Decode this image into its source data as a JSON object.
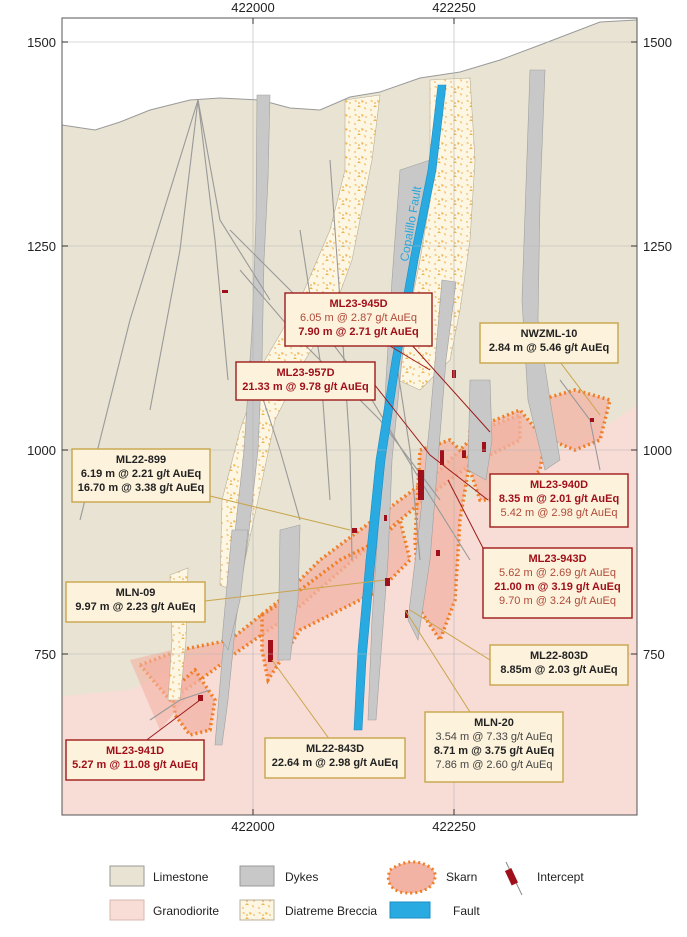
{
  "axes": {
    "x_ticks": [
      "422000",
      "422250"
    ],
    "y_ticks": [
      "1500",
      "1250",
      "1000",
      "750"
    ]
  },
  "fault_label": "Copalillo Fault",
  "colors": {
    "limestone": "#e8e3d2",
    "granodiorite": "#f8dcd6",
    "dykes": "#c8c8c8",
    "breccia": "#fdf6e3",
    "breccia_fleck": "#f0b54a",
    "fault": "#29abe2",
    "skarn_fill": "#f3b3a4",
    "skarn_border": "#f07d24",
    "intercept": "#a0101b",
    "callout_border": "#c8a54a",
    "callout_fill": "#fdf3dc",
    "callout_red_border": "#9e1b1b",
    "title_red": "#a0101b"
  },
  "callouts": [
    {
      "id": "ml23-945d",
      "title": "ML23-945D",
      "red": true,
      "lines": [
        {
          "text": "6.05 m @ 2.87 g/t AuEq",
          "bold": false
        },
        {
          "text": "7.90 m @ 2.71 g/t AuEq",
          "bold": true
        }
      ]
    },
    {
      "id": "nwzml-10",
      "title": "NWZML-10",
      "red": false,
      "lines": [
        {
          "text": "2.84 m @ 5.46 g/t AuEq",
          "bold": true
        }
      ]
    },
    {
      "id": "ml23-957d",
      "title": "ML23-957D",
      "red": true,
      "lines": [
        {
          "text": "21.33 m @ 9.78 g/t AuEq",
          "bold": true
        }
      ]
    },
    {
      "id": "ml22-899",
      "title": "ML22-899",
      "red": false,
      "lines": [
        {
          "text": "6.19 m @ 2.21 g/t AuEq",
          "bold": true
        },
        {
          "text": "16.70 m @ 3.38 g/t AuEq",
          "bold": true
        }
      ]
    },
    {
      "id": "ml23-940d",
      "title": "ML23-940D",
      "red": true,
      "lines": [
        {
          "text": "8.35 m @ 2.01 g/t AuEq",
          "bold": true
        },
        {
          "text": "5.42 m @ 2.98 g/t AuEq",
          "bold": false
        }
      ]
    },
    {
      "id": "ml23-943d",
      "title": "ML23-943D",
      "red": true,
      "lines": [
        {
          "text": "5.62 m @ 2.69 g/t AuEq",
          "bold": false
        },
        {
          "text": "21.00 m @ 3.19 g/t AuEq",
          "bold": true
        },
        {
          "text": "9.70 m @ 3.24 g/t AuEq",
          "bold": false
        }
      ]
    },
    {
      "id": "mln-09",
      "title": "MLN-09",
      "red": false,
      "lines": [
        {
          "text": "9.97 m @ 2.23 g/t AuEq",
          "bold": true
        }
      ]
    },
    {
      "id": "ml22-803d",
      "title": "ML22-803D",
      "red": false,
      "lines": [
        {
          "text": "8.85m @ 2.03 g/t AuEq",
          "bold": true
        }
      ]
    },
    {
      "id": "mln-20",
      "title": "MLN-20",
      "red": false,
      "lines": [
        {
          "text": "3.54 m @ 7.33 g/t AuEq",
          "bold": false
        },
        {
          "text": "8.71 m @ 3.75 g/t AuEq",
          "bold": true
        },
        {
          "text": "7.86 m @ 2.60 g/t AuEq",
          "bold": false
        }
      ]
    },
    {
      "id": "ml23-941d",
      "title": "ML23-941D",
      "red": true,
      "lines": [
        {
          "text": "5.27 m @ 11.08 g/t AuEq",
          "bold": true
        }
      ]
    },
    {
      "id": "ml22-843d",
      "title": "ML22-843D",
      "red": false,
      "lines": [
        {
          "text": "22.64 m @ 2.98 g/t AuEq",
          "bold": true
        }
      ]
    }
  ],
  "legend": {
    "limestone": "Limestone",
    "granodiorite": "Granodiorite",
    "dykes": "Dykes",
    "breccia": "Diatreme Breccia",
    "skarn": "Skarn",
    "fault": "Fault",
    "intercept": "Intercept"
  }
}
